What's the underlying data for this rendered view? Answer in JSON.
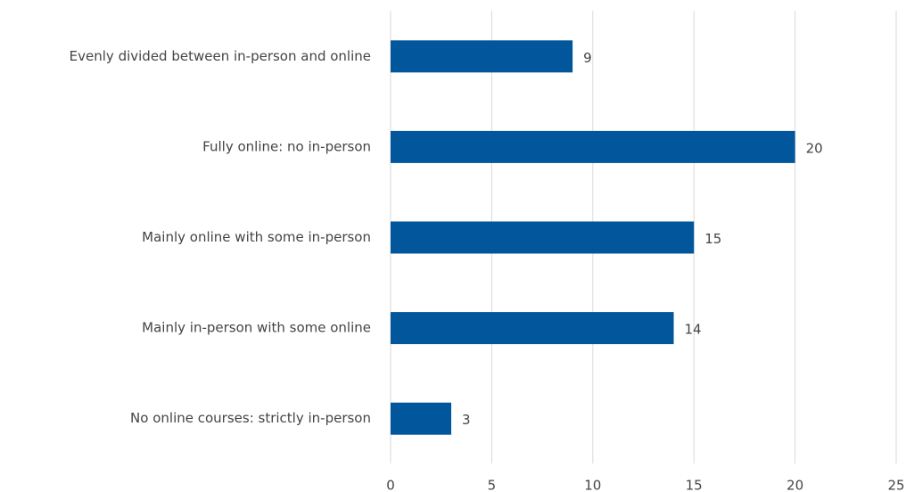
{
  "chart_data": {
    "type": "barh",
    "categories": [
      "Evenly divided between in-person and online",
      "Fully online: no in-person",
      "Mainly online with some in-person",
      "Mainly in-person with some online",
      "No online courses: strictly in-person"
    ],
    "values": [
      9,
      20,
      15,
      14,
      3
    ],
    "color": "#02569b",
    "xlim": [
      0,
      25
    ],
    "xticks": [
      0,
      5,
      10,
      15,
      20,
      25
    ],
    "grid": true
  }
}
